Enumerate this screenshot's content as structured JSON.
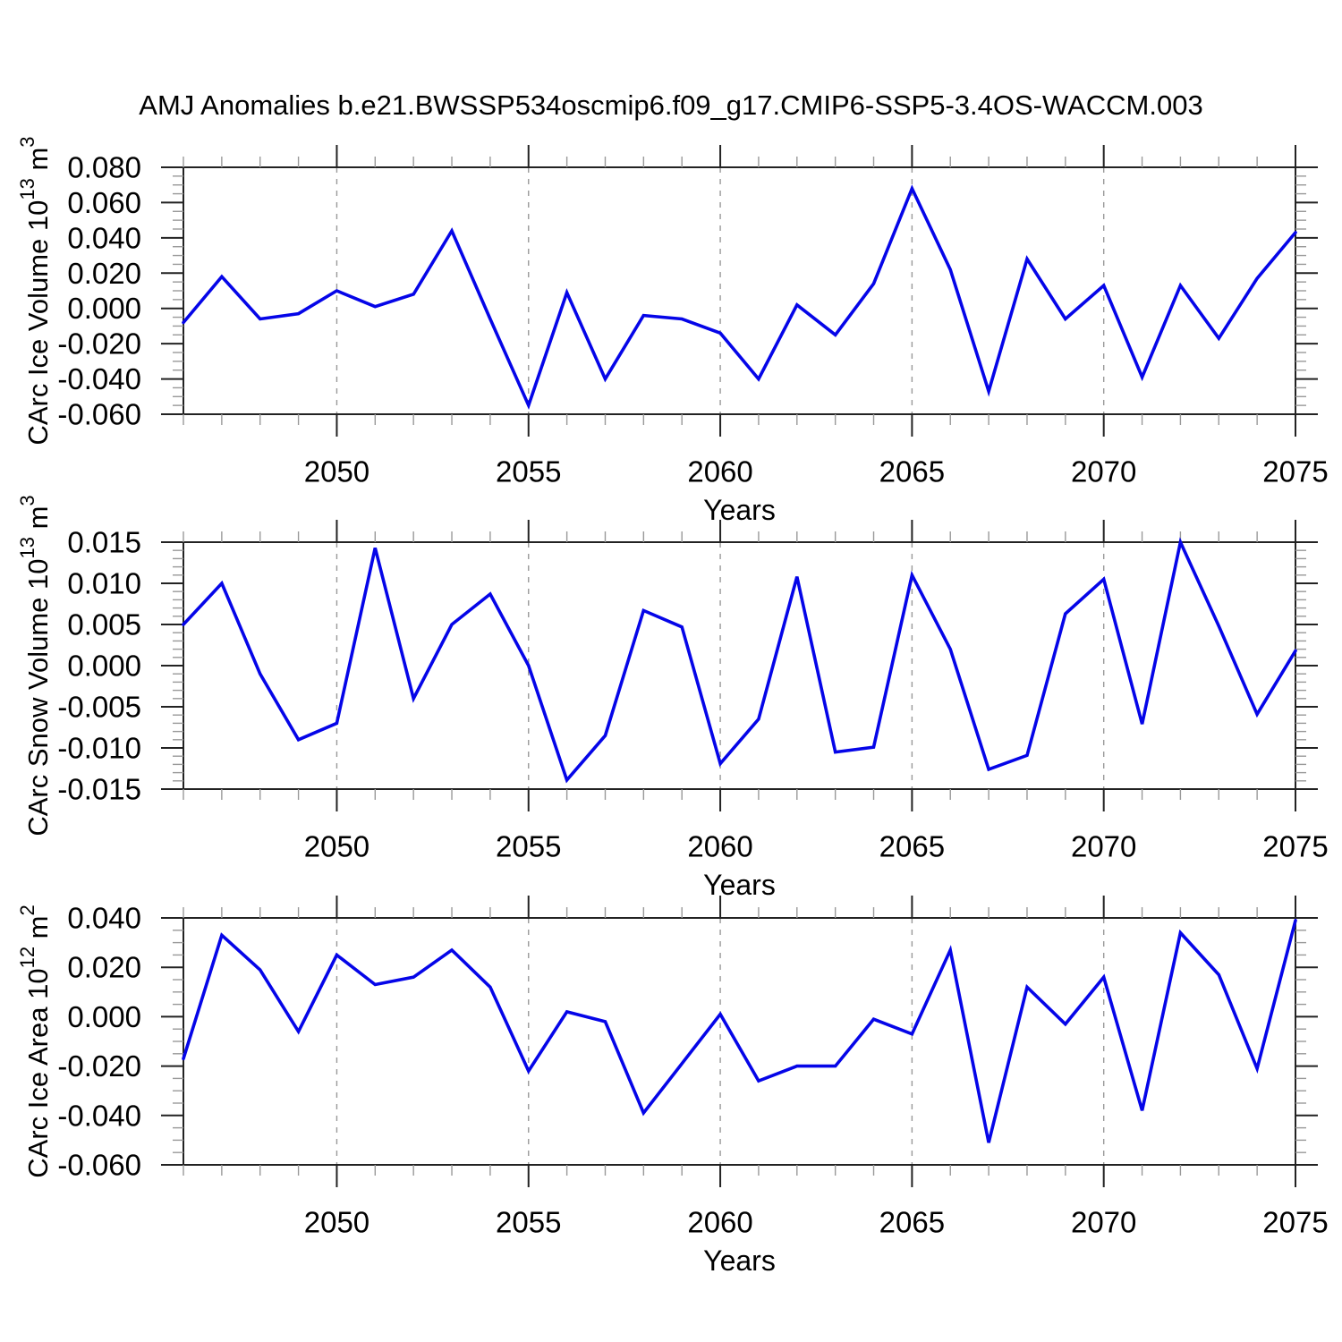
{
  "title": "AMJ Anomalies b.e21.BWSSP534oscmip6.f09_g17.CMIP6-SSP5-3.4OS-WACCM.003",
  "colors": {
    "line": "#0505e8",
    "frame": "#222222",
    "minor_tick": "#999999",
    "grid": "#999999",
    "text": "#000000"
  },
  "x_years": [
    2046,
    2047,
    2048,
    2049,
    2050,
    2051,
    2052,
    2053,
    2054,
    2055,
    2056,
    2057,
    2058,
    2059,
    2060,
    2061,
    2062,
    2063,
    2064,
    2065,
    2066,
    2067,
    2068,
    2069,
    2070,
    2071,
    2072,
    2073,
    2074,
    2075
  ],
  "chart_data": [
    {
      "type": "line",
      "panel": "carc-ice-volume",
      "ylabel_parts": {
        "base": "CArc Ice Volume 10",
        "sup": "13",
        "base2": " m",
        "sup2": "3"
      },
      "xlabel": "Years",
      "legend": "none",
      "grid": "vertical-dashed",
      "xlim": [
        2046,
        2075
      ],
      "ylim": [
        -0.06,
        0.08
      ],
      "ytick_major": 0.02,
      "ytick_minor": 0.005,
      "y_decimals": 3,
      "xtick_major": [
        2050,
        2055,
        2060,
        2065,
        2070,
        2075
      ],
      "grid_x": [
        2050,
        2055,
        2060,
        2065,
        2070
      ],
      "values": [
        -0.008,
        0.018,
        -0.006,
        -0.003,
        0.01,
        0.001,
        0.008,
        0.044,
        -0.006,
        -0.055,
        0.009,
        -0.04,
        -0.004,
        -0.006,
        -0.014,
        -0.04,
        0.002,
        -0.015,
        0.014,
        0.068,
        0.022,
        -0.047,
        0.028,
        -0.006,
        0.013,
        -0.039,
        0.013,
        -0.017,
        0.017,
        0.043
      ]
    },
    {
      "type": "line",
      "panel": "carc-snow-volume",
      "ylabel_parts": {
        "base": "CArc Snow Volume 10",
        "sup": "13",
        "base2": " m",
        "sup2": "3"
      },
      "xlabel": "Years",
      "legend": "none",
      "grid": "vertical-dashed",
      "xlim": [
        2046,
        2075
      ],
      "ylim": [
        -0.015,
        0.015
      ],
      "ytick_major": 0.005,
      "ytick_minor": 0.001,
      "y_decimals": 3,
      "xtick_major": [
        2050,
        2055,
        2060,
        2065,
        2070,
        2075
      ],
      "grid_x": [
        2050,
        2055,
        2060,
        2065,
        2070
      ],
      "values": [
        0.005,
        0.01,
        -0.001,
        -0.009,
        -0.007,
        0.0143,
        -0.004,
        0.005,
        0.0087,
        0.0,
        -0.0139,
        -0.0085,
        0.0067,
        0.0047,
        -0.0119,
        -0.0065,
        0.0108,
        -0.0105,
        -0.0099,
        0.011,
        0.002,
        -0.0126,
        -0.0109,
        0.0063,
        0.0105,
        -0.0071,
        0.015,
        0.0048,
        -0.0059,
        0.0018
      ]
    },
    {
      "type": "line",
      "panel": "carc-ice-area",
      "ylabel_parts": {
        "base": "CArc Ice Area 10",
        "sup": "12",
        "base2": " m",
        "sup2": "2"
      },
      "xlabel": "Years",
      "legend": "none",
      "grid": "vertical-dashed",
      "xlim": [
        2046,
        2075
      ],
      "ylim": [
        -0.06,
        0.04
      ],
      "ytick_major": 0.02,
      "ytick_minor": 0.005,
      "y_decimals": 3,
      "xtick_major": [
        2050,
        2055,
        2060,
        2065,
        2070,
        2075
      ],
      "grid_x": [
        2050,
        2055,
        2060,
        2065,
        2070
      ],
      "values": [
        -0.017,
        0.033,
        0.019,
        -0.006,
        0.025,
        0.013,
        0.016,
        0.027,
        0.012,
        -0.022,
        0.002,
        -0.002,
        -0.039,
        -0.019,
        0.001,
        -0.026,
        -0.02,
        -0.02,
        -0.001,
        -0.007,
        0.027,
        -0.051,
        0.012,
        -0.003,
        0.016,
        -0.038,
        0.034,
        0.017,
        -0.021,
        0.039
      ]
    }
  ]
}
